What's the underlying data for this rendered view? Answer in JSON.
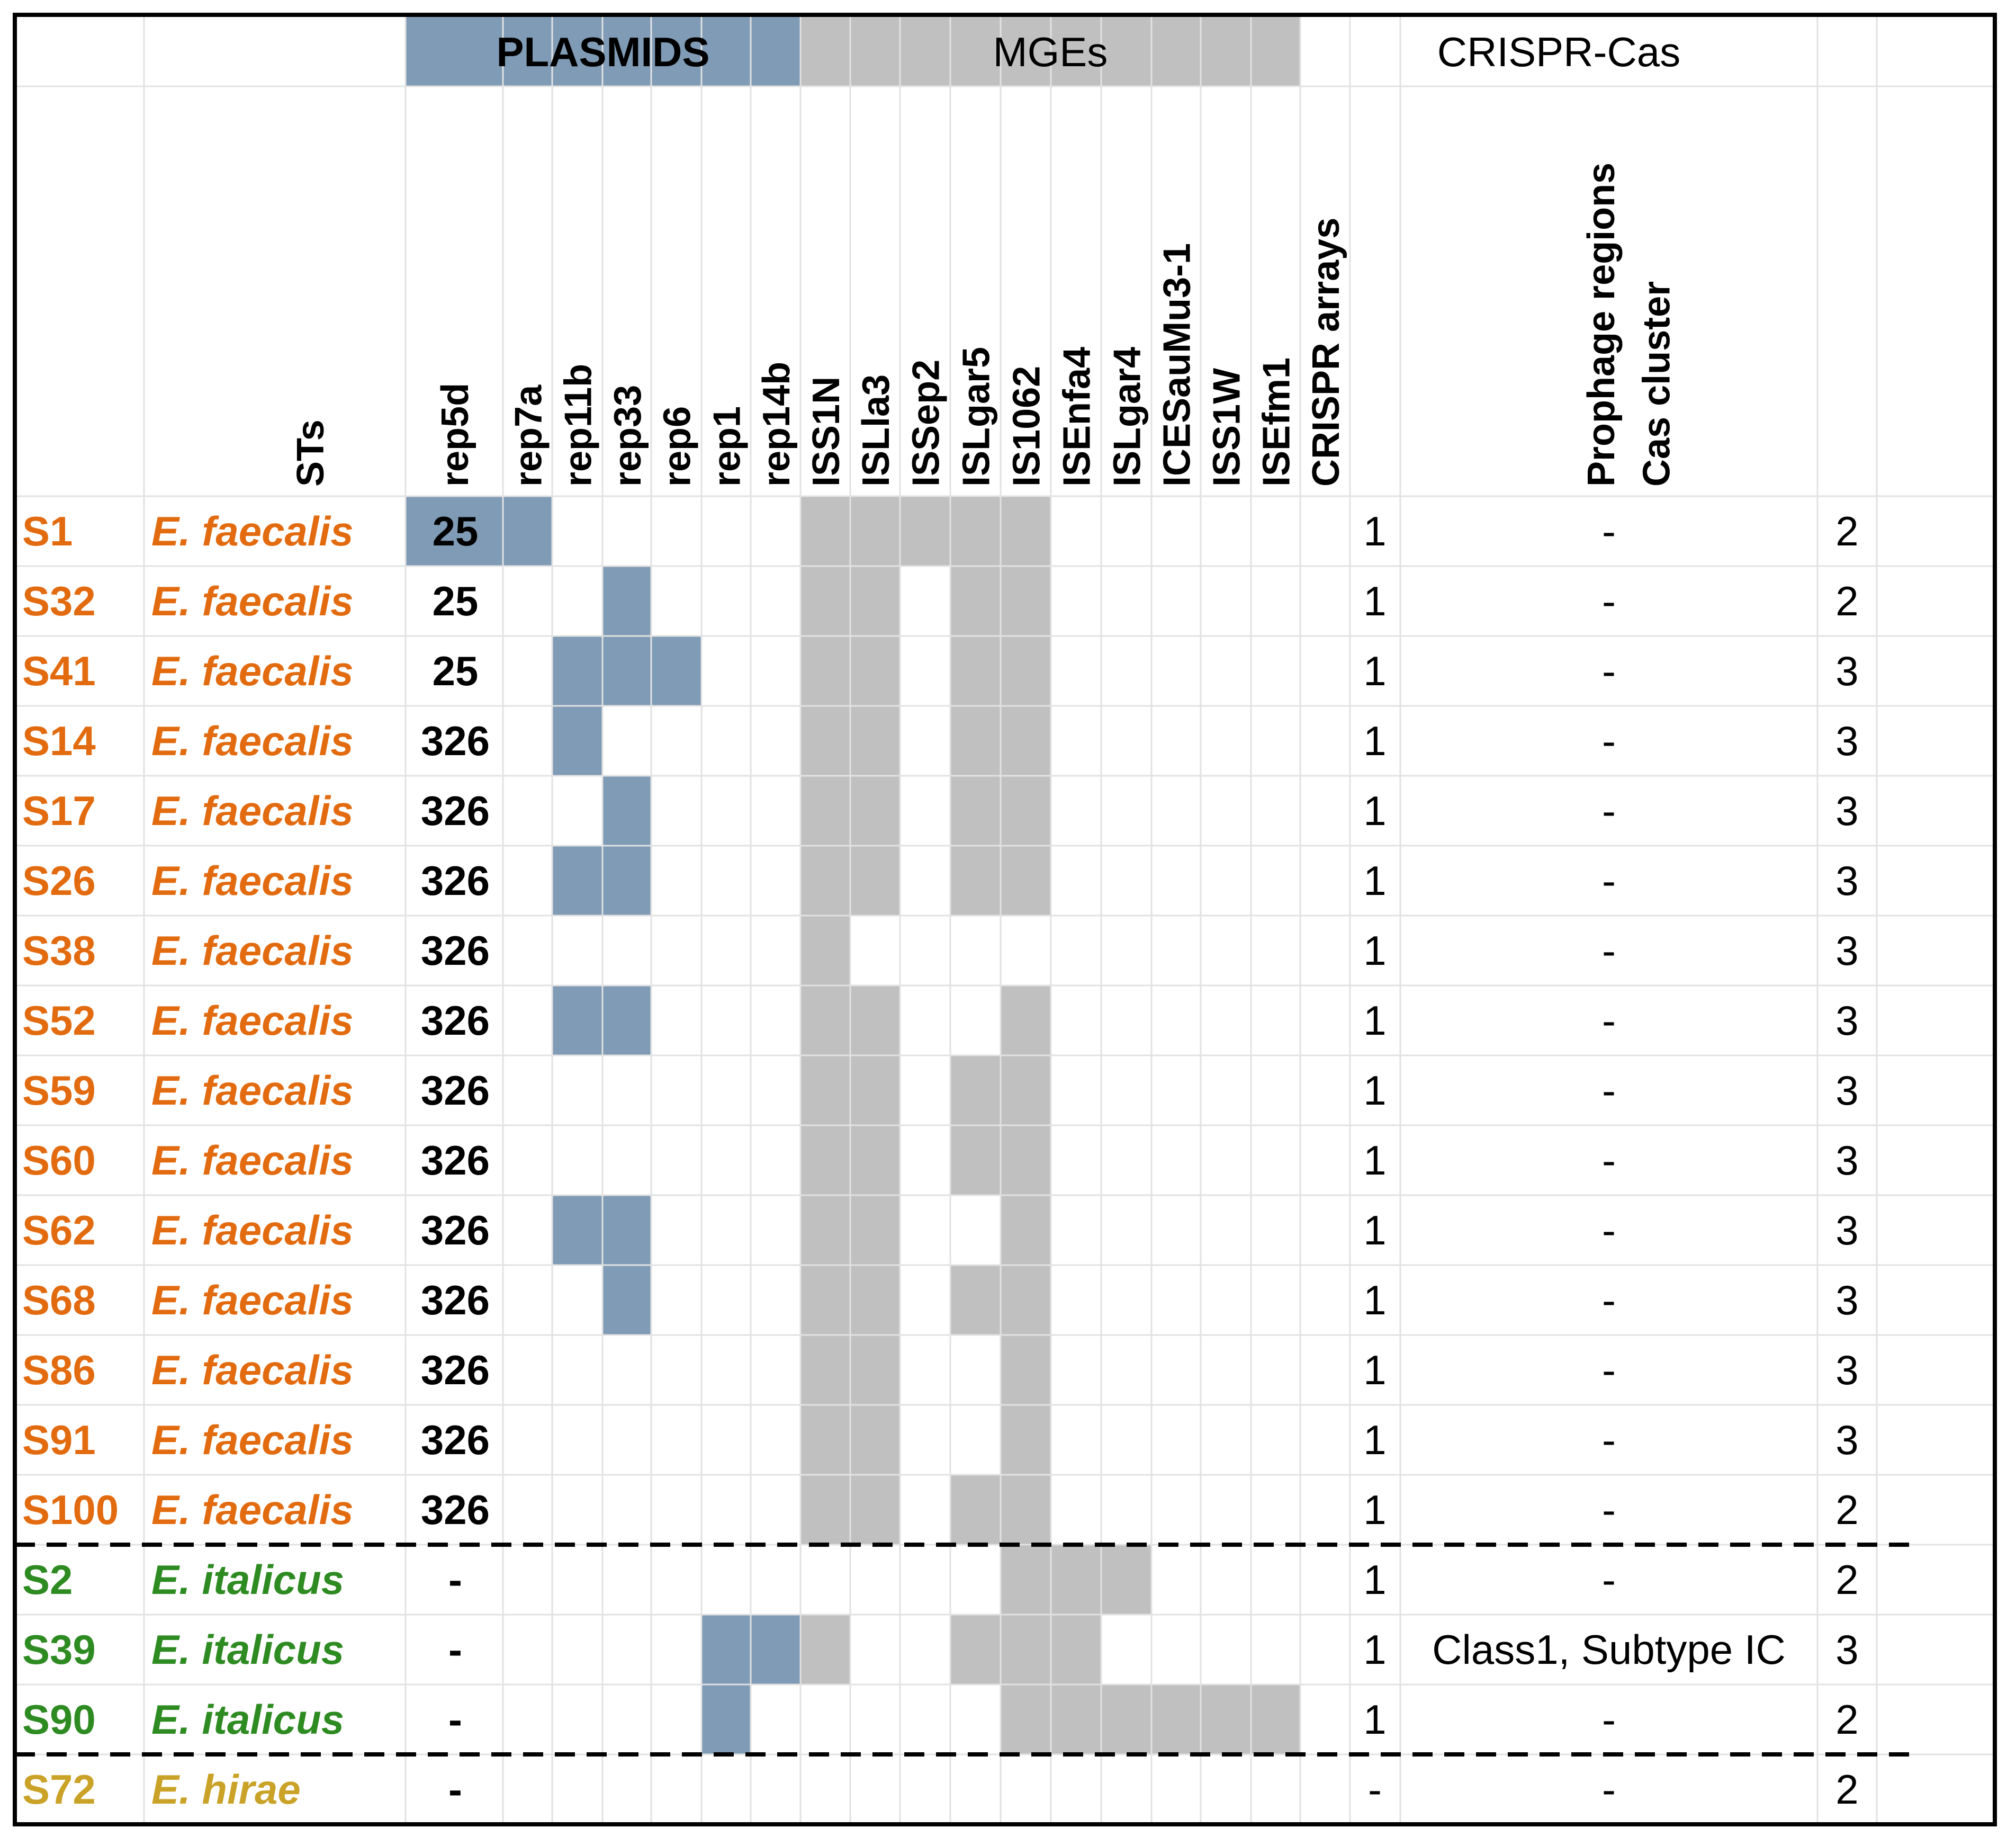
{
  "colors": {
    "plasmid": "#7f9bb5",
    "mge": "#c0c0c0",
    "grid": "#e2e2e2",
    "border": "#000000",
    "faecalis": "#e26b10",
    "italicus": "#2e8b22",
    "hirae": "#c9a227",
    "text": "#000000"
  },
  "groups": {
    "plasmids": "PLASMIDS",
    "mges": "MGEs",
    "crispr": "CRISPR-Cas"
  },
  "headers": {
    "sts": "STs",
    "plasmids": [
      "rep5d",
      "rep7a",
      "rep11b",
      "rep33",
      "rep6",
      "rep1",
      "rep14b"
    ],
    "mges": [
      "ISS1N",
      "ISLla3",
      "ISSep2",
      "ISLgar5",
      "IS1062",
      "ISEnfa4",
      "ISLgar4",
      "ICESauMu3-1",
      "ISS1W",
      "ISEfm1"
    ],
    "crispr_arrays": "CRISPR arrays",
    "cas_cluster": "Cas cluster",
    "prophage": "Prophage regions"
  },
  "rows": [
    {
      "id": "S1",
      "species": "E. faecalis",
      "group": "faecalis",
      "st": "25",
      "plasmids": [
        1,
        1,
        0,
        0,
        0,
        0,
        0
      ],
      "mges": [
        1,
        1,
        1,
        1,
        1,
        0,
        0,
        0,
        0,
        0
      ],
      "crispr": "1",
      "cas": "-",
      "prophage": "2"
    },
    {
      "id": "S32",
      "species": "E. faecalis",
      "group": "faecalis",
      "st": "25",
      "plasmids": [
        0,
        0,
        0,
        1,
        0,
        0,
        0
      ],
      "mges": [
        1,
        1,
        0,
        1,
        1,
        0,
        0,
        0,
        0,
        0
      ],
      "crispr": "1",
      "cas": "-",
      "prophage": "2"
    },
    {
      "id": "S41",
      "species": "E. faecalis",
      "group": "faecalis",
      "st": "25",
      "plasmids": [
        0,
        0,
        1,
        1,
        1,
        0,
        0
      ],
      "mges": [
        1,
        1,
        0,
        1,
        1,
        0,
        0,
        0,
        0,
        0
      ],
      "crispr": "1",
      "cas": "-",
      "prophage": "3"
    },
    {
      "id": "S14",
      "species": "E. faecalis",
      "group": "faecalis",
      "st": "326",
      "plasmids": [
        0,
        0,
        1,
        0,
        0,
        0,
        0
      ],
      "mges": [
        1,
        1,
        0,
        1,
        1,
        0,
        0,
        0,
        0,
        0
      ],
      "crispr": "1",
      "cas": "-",
      "prophage": "3"
    },
    {
      "id": "S17",
      "species": "E. faecalis",
      "group": "faecalis",
      "st": "326",
      "plasmids": [
        0,
        0,
        0,
        1,
        0,
        0,
        0
      ],
      "mges": [
        1,
        1,
        0,
        1,
        1,
        0,
        0,
        0,
        0,
        0
      ],
      "crispr": "1",
      "cas": "-",
      "prophage": "3"
    },
    {
      "id": "S26",
      "species": "E. faecalis",
      "group": "faecalis",
      "st": "326",
      "plasmids": [
        0,
        0,
        1,
        1,
        0,
        0,
        0
      ],
      "mges": [
        1,
        1,
        0,
        1,
        1,
        0,
        0,
        0,
        0,
        0
      ],
      "crispr": "1",
      "cas": "-",
      "prophage": "3"
    },
    {
      "id": "S38",
      "species": "E. faecalis",
      "group": "faecalis",
      "st": "326",
      "plasmids": [
        0,
        0,
        0,
        0,
        0,
        0,
        0
      ],
      "mges": [
        1,
        0,
        0,
        0,
        0,
        0,
        0,
        0,
        0,
        0
      ],
      "crispr": "1",
      "cas": "-",
      "prophage": "3"
    },
    {
      "id": "S52",
      "species": "E. faecalis",
      "group": "faecalis",
      "st": "326",
      "plasmids": [
        0,
        0,
        1,
        1,
        0,
        0,
        0
      ],
      "mges": [
        1,
        1,
        0,
        0,
        1,
        0,
        0,
        0,
        0,
        0
      ],
      "crispr": "1",
      "cas": "-",
      "prophage": "3"
    },
    {
      "id": "S59",
      "species": "E. faecalis",
      "group": "faecalis",
      "st": "326",
      "plasmids": [
        0,
        0,
        0,
        0,
        0,
        0,
        0
      ],
      "mges": [
        1,
        1,
        0,
        1,
        1,
        0,
        0,
        0,
        0,
        0
      ],
      "crispr": "1",
      "cas": "-",
      "prophage": "3"
    },
    {
      "id": "S60",
      "species": "E. faecalis",
      "group": "faecalis",
      "st": "326",
      "plasmids": [
        0,
        0,
        0,
        0,
        0,
        0,
        0
      ],
      "mges": [
        1,
        1,
        0,
        1,
        1,
        0,
        0,
        0,
        0,
        0
      ],
      "crispr": "1",
      "cas": "-",
      "prophage": "3"
    },
    {
      "id": "S62",
      "species": "E. faecalis",
      "group": "faecalis",
      "st": "326",
      "plasmids": [
        0,
        0,
        1,
        1,
        0,
        0,
        0
      ],
      "mges": [
        1,
        1,
        0,
        0,
        1,
        0,
        0,
        0,
        0,
        0
      ],
      "crispr": "1",
      "cas": "-",
      "prophage": "3"
    },
    {
      "id": "S68",
      "species": "E. faecalis",
      "group": "faecalis",
      "st": "326",
      "plasmids": [
        0,
        0,
        0,
        1,
        0,
        0,
        0
      ],
      "mges": [
        1,
        1,
        0,
        1,
        1,
        0,
        0,
        0,
        0,
        0
      ],
      "crispr": "1",
      "cas": "-",
      "prophage": "3"
    },
    {
      "id": "S86",
      "species": "E. faecalis",
      "group": "faecalis",
      "st": "326",
      "plasmids": [
        0,
        0,
        0,
        0,
        0,
        0,
        0
      ],
      "mges": [
        1,
        1,
        0,
        0,
        1,
        0,
        0,
        0,
        0,
        0
      ],
      "crispr": "1",
      "cas": "-",
      "prophage": "3"
    },
    {
      "id": "S91",
      "species": "E. faecalis",
      "group": "faecalis",
      "st": "326",
      "plasmids": [
        0,
        0,
        0,
        0,
        0,
        0,
        0
      ],
      "mges": [
        1,
        1,
        0,
        0,
        1,
        0,
        0,
        0,
        0,
        0
      ],
      "crispr": "1",
      "cas": "-",
      "prophage": "3"
    },
    {
      "id": "S100",
      "species": "E. faecalis",
      "group": "faecalis",
      "st": "326",
      "plasmids": [
        0,
        0,
        0,
        0,
        0,
        0,
        0
      ],
      "mges": [
        1,
        1,
        0,
        1,
        1,
        0,
        0,
        0,
        0,
        0
      ],
      "crispr": "1",
      "cas": "-",
      "prophage": "2"
    },
    {
      "id": "S2",
      "species": "E. italicus",
      "group": "italicus",
      "st": "-",
      "plasmids": [
        0,
        0,
        0,
        0,
        0,
        0,
        0
      ],
      "mges": [
        0,
        0,
        0,
        0,
        1,
        1,
        1,
        0,
        0,
        0
      ],
      "crispr": "1",
      "cas": "-",
      "prophage": "2"
    },
    {
      "id": "S39",
      "species": "E. italicus",
      "group": "italicus",
      "st": "-",
      "plasmids": [
        0,
        0,
        0,
        0,
        0,
        1,
        1
      ],
      "mges": [
        1,
        0,
        0,
        1,
        1,
        1,
        0,
        0,
        0,
        0
      ],
      "crispr": "1",
      "cas": "Class1, Subtype IC",
      "prophage": "3"
    },
    {
      "id": "S90",
      "species": "E. italicus",
      "group": "italicus",
      "st": "-",
      "plasmids": [
        0,
        0,
        0,
        0,
        0,
        1,
        0
      ],
      "mges": [
        0,
        0,
        0,
        0,
        1,
        1,
        1,
        1,
        1,
        1
      ],
      "crispr": "1",
      "cas": "-",
      "prophage": "2"
    },
    {
      "id": "S72",
      "species": "E. hirae",
      "group": "hirae",
      "st": "-",
      "plasmids": [
        0,
        0,
        0,
        0,
        0,
        0,
        0
      ],
      "mges": [
        0,
        0,
        0,
        0,
        0,
        0,
        0,
        0,
        0,
        0
      ],
      "crispr": "-",
      "cas": "-",
      "prophage": "2"
    }
  ]
}
